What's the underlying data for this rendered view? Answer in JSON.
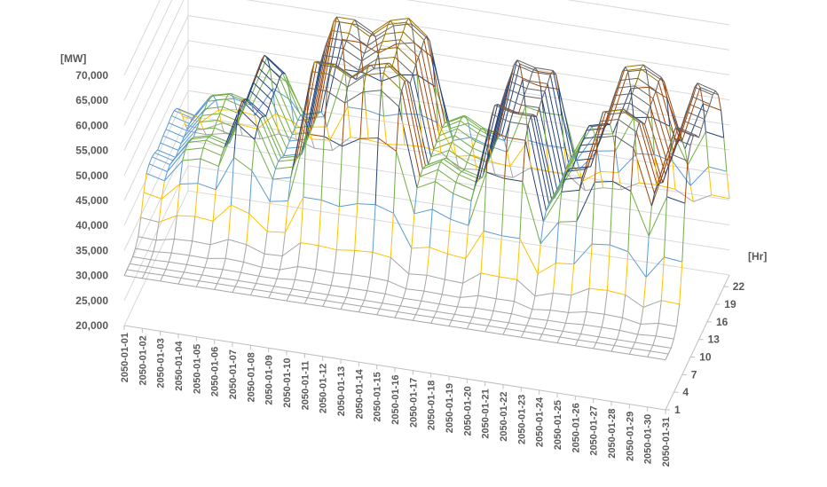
{
  "chart_data": {
    "type": "3d-surface-wireframe",
    "z_unit_label": "[MW]",
    "y_unit_label": "[Hr]",
    "z_ticks": [
      "70,000",
      "65,000",
      "60,000",
      "55,000",
      "50,000",
      "45,000",
      "40,000",
      "35,000",
      "30,000",
      "25,000",
      "20,000"
    ],
    "zlim": [
      20000,
      70000
    ],
    "x_categories": [
      "2050-01-01",
      "2050-01-02",
      "2050-01-03",
      "2050-01-04",
      "2050-01-05",
      "2050-01-06",
      "2050-01-07",
      "2050-01-08",
      "2050-01-09",
      "2050-01-10",
      "2050-01-11",
      "2050-01-12",
      "2050-01-13",
      "2050-01-14",
      "2050-01-15",
      "2050-01-16",
      "2050-01-17",
      "2050-01-18",
      "2050-01-19",
      "2050-01-20",
      "2050-01-21",
      "2050-01-22",
      "2050-01-23",
      "2050-01-24",
      "2050-01-25",
      "2050-01-26",
      "2050-01-27",
      "2050-01-28",
      "2050-01-29",
      "2050-01-30",
      "2050-01-31"
    ],
    "y_ticks": [
      "1",
      "4",
      "7",
      "10",
      "13",
      "16",
      "19",
      "22"
    ],
    "y_range": [
      1,
      24
    ],
    "color_bands": [
      {
        "from": 20000,
        "to": 25000,
        "color": "#4472C4"
      },
      {
        "from": 25000,
        "to": 30000,
        "color": "#ED7D31"
      },
      {
        "from": 30000,
        "to": 35000,
        "color": "#A5A5A5"
      },
      {
        "from": 35000,
        "to": 40000,
        "color": "#FFC000"
      },
      {
        "from": 40000,
        "to": 45000,
        "color": "#5B9BD5"
      },
      {
        "from": 45000,
        "to": 50000,
        "color": "#70AD47"
      },
      {
        "from": 50000,
        "to": 55000,
        "color": "#264478"
      },
      {
        "from": 55000,
        "to": 60000,
        "color": "#9E480E"
      },
      {
        "from": 60000,
        "to": 65000,
        "color": "#636363"
      },
      {
        "from": 65000,
        "to": 70000,
        "color": "#997300"
      }
    ],
    "day_peak_mw": [
      42000,
      41000,
      46000,
      47000,
      46000,
      56000,
      53000,
      45000,
      46000,
      66000,
      66000,
      64000,
      67000,
      68000,
      65000,
      48000,
      50000,
      48000,
      47000,
      63000,
      62000,
      62000,
      45000,
      52000,
      53000,
      65000,
      66000,
      64000,
      52000,
      64000,
      63000
    ],
    "hour_profile": [
      0.0,
      0.0,
      0.0,
      0.02,
      0.06,
      0.16,
      0.38,
      0.7,
      0.92,
      0.98,
      1.0,
      0.97,
      0.92,
      0.94,
      0.96,
      0.97,
      0.98,
      1.0,
      0.99,
      0.93,
      0.8,
      0.6,
      0.36,
      0.16
    ],
    "night_base_mw": 30000,
    "grid": true
  }
}
